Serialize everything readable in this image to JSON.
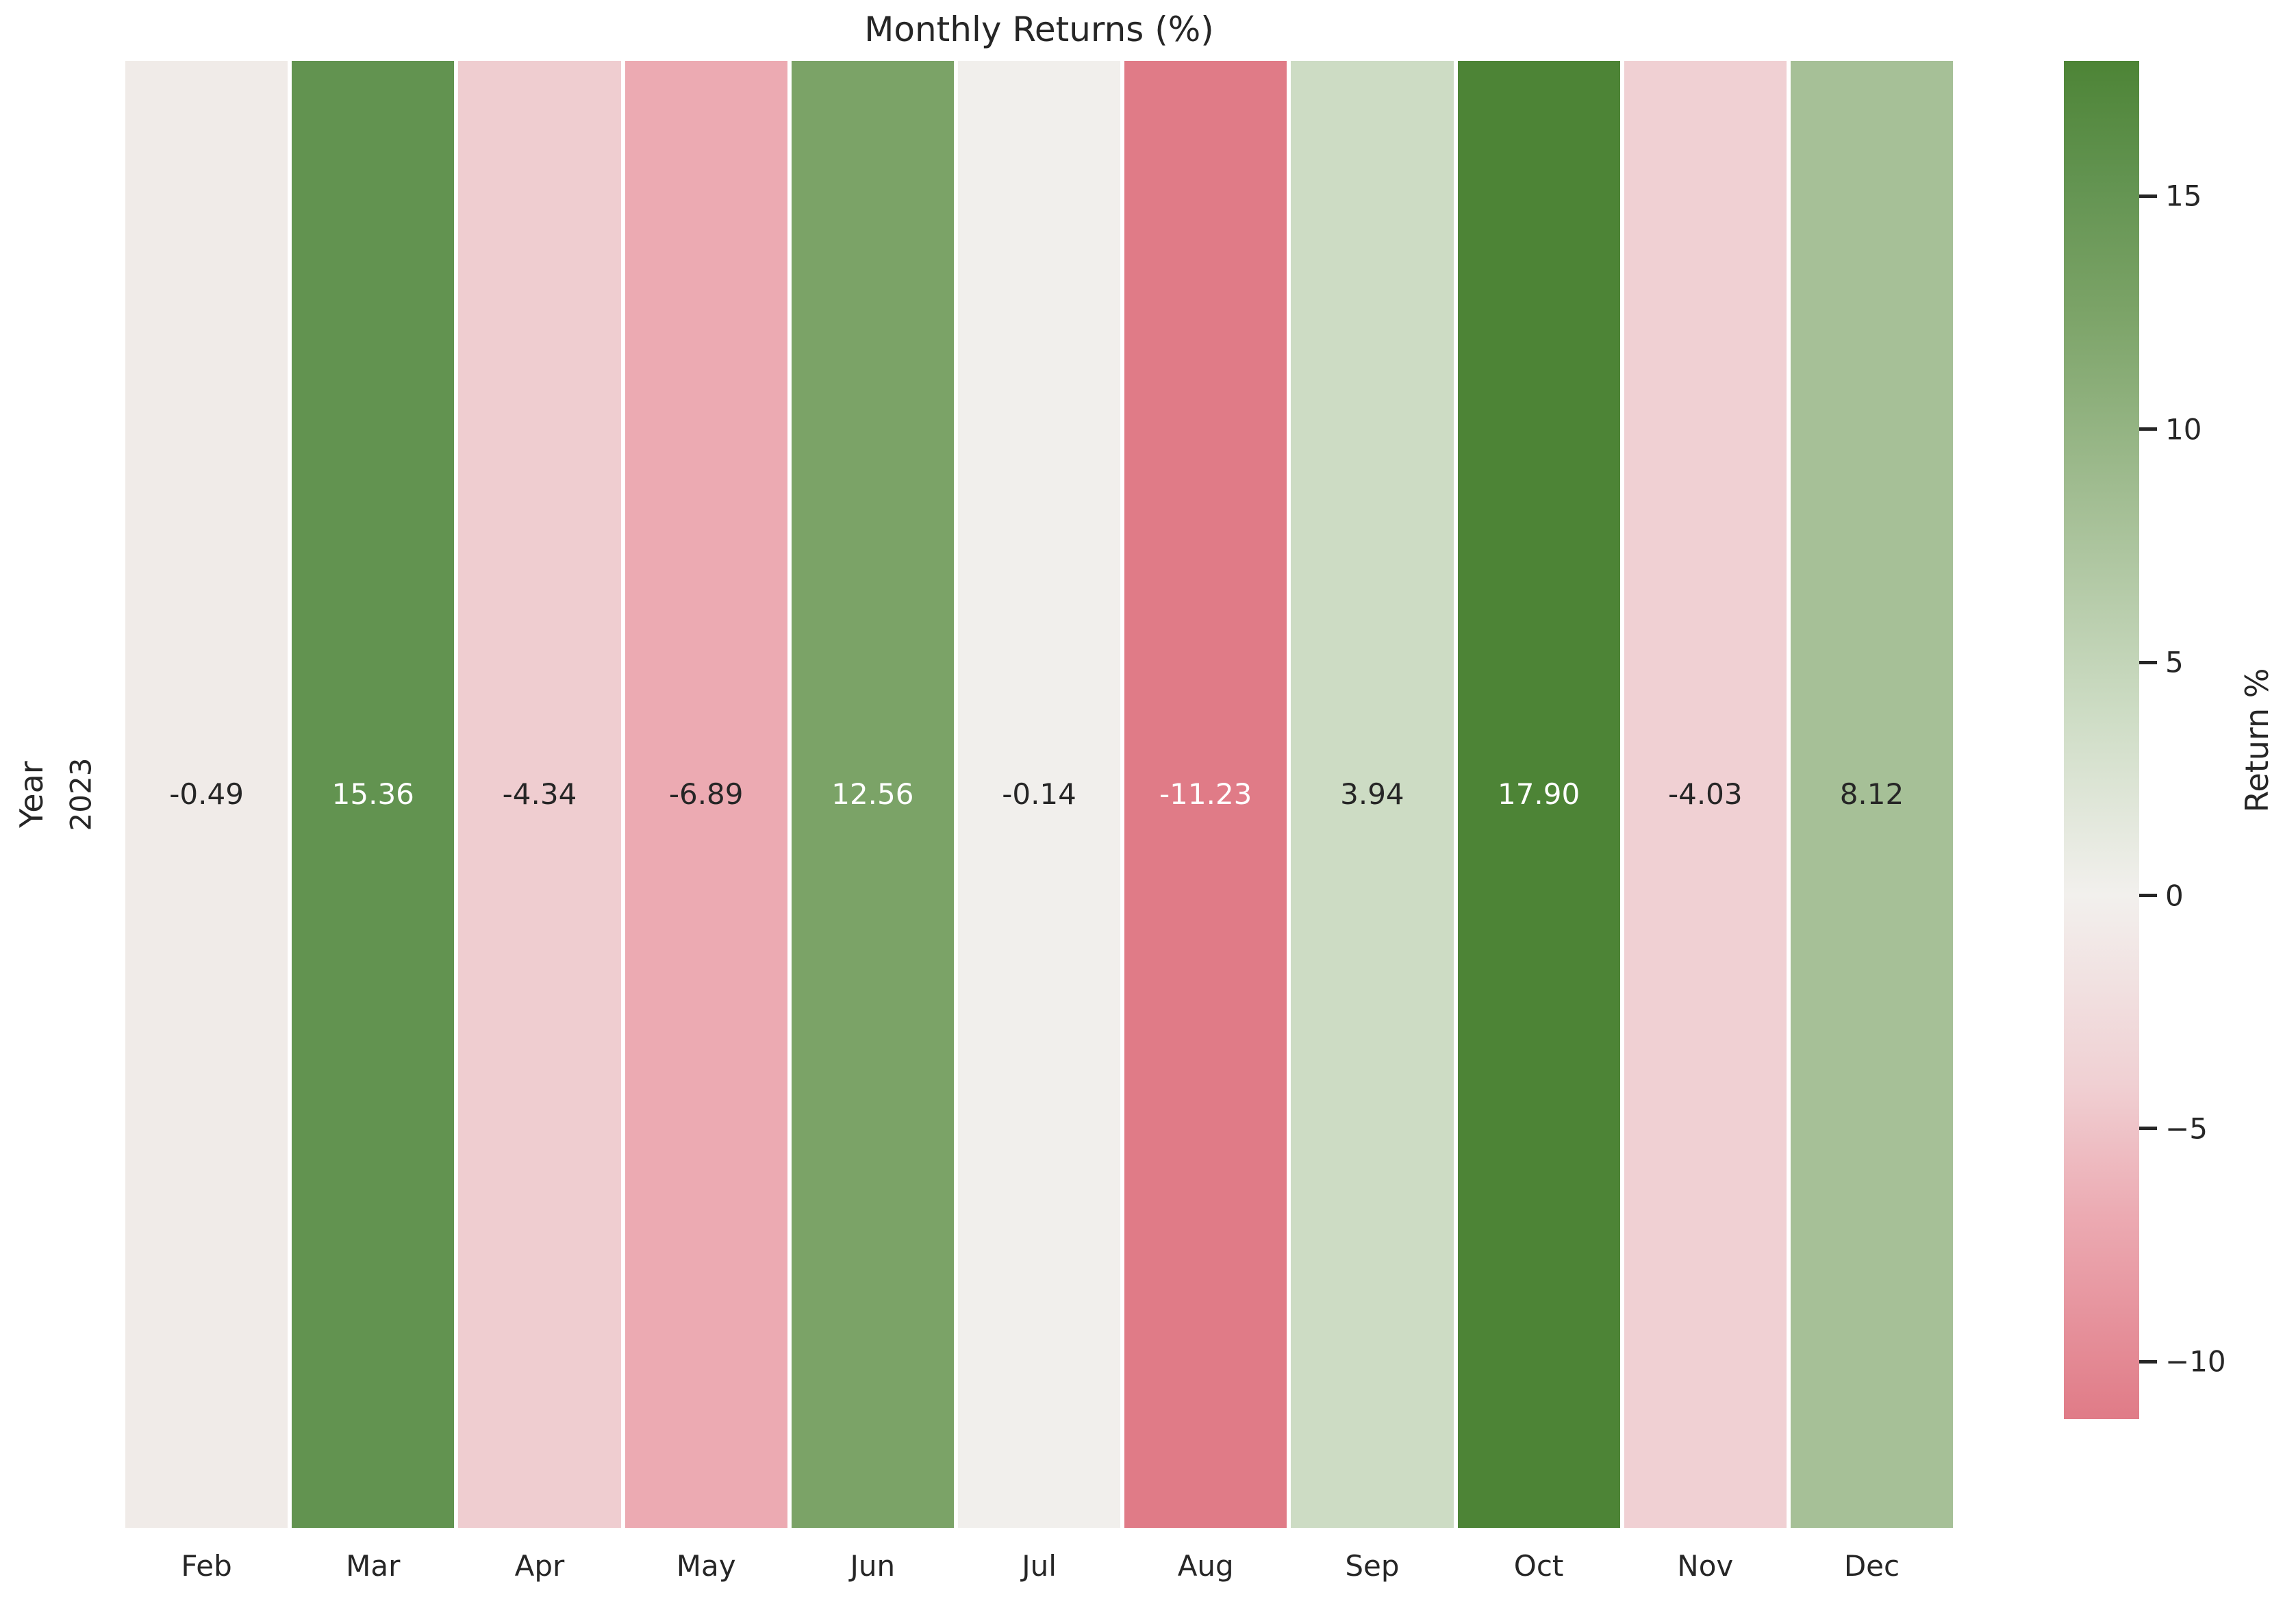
{
  "title": "Monthly Returns (%)",
  "y_axis": {
    "label": "Year",
    "tick_label": "2023"
  },
  "colorbar": {
    "label": "Return %"
  },
  "text_color": "#262626",
  "chart_data": {
    "type": "heatmap",
    "title": "Monthly Returns (%)",
    "xlabel": "",
    "ylabel": "Year",
    "rows": [
      "2023"
    ],
    "columns": [
      "Feb",
      "Mar",
      "Apr",
      "May",
      "Jun",
      "Jul",
      "Aug",
      "Sep",
      "Oct",
      "Nov",
      "Dec"
    ],
    "values": [
      [
        -0.49,
        15.36,
        -4.34,
        -6.89,
        12.56,
        -0.14,
        -11.23,
        3.94,
        17.9,
        -4.03,
        8.12
      ]
    ],
    "value_labels": [
      [
        "-0.49",
        "15.36",
        "-4.34",
        "-6.89",
        "12.56",
        "-0.14",
        "-11.23",
        "3.94",
        "17.90",
        "-4.03",
        "8.12"
      ]
    ],
    "cell_colors": [
      [
        "#f0ebe8",
        "#629350",
        "#efcdd0",
        "#ecaab2",
        "#7ba367",
        "#f1efec",
        "#e07b87",
        "#cddcc4",
        "#4d8436",
        "#f0d0d3",
        "#a6c097"
      ]
    ],
    "cell_text_colors": [
      [
        "#262626",
        "#ffffff",
        "#262626",
        "#262626",
        "#ffffff",
        "#262626",
        "#ffffff",
        "#262626",
        "#ffffff",
        "#262626",
        "#262626"
      ]
    ],
    "colorbar": {
      "label": "Return %",
      "vmin": -11.23,
      "vmax": 17.9,
      "ticks": [
        15,
        10,
        5,
        0,
        -5,
        -10
      ],
      "tick_labels": [
        "15",
        "10",
        "5",
        "0",
        "−5",
        "−10"
      ],
      "gradient_stops": [
        {
          "pct": 0.0,
          "color": "#4d8436"
        },
        {
          "pct": 8.7,
          "color": "#629350"
        },
        {
          "pct": 18.3,
          "color": "#7ba367"
        },
        {
          "pct": 33.6,
          "color": "#a6c097"
        },
        {
          "pct": 47.9,
          "color": "#cddcc4"
        },
        {
          "pct": 61.4,
          "color": "#f2f0ed"
        },
        {
          "pct": 75.3,
          "color": "#f0d0d3"
        },
        {
          "pct": 85.1,
          "color": "#ecaab2"
        },
        {
          "pct": 100.0,
          "color": "#e07b87"
        }
      ],
      "legend_position": "right"
    },
    "grid": false
  }
}
